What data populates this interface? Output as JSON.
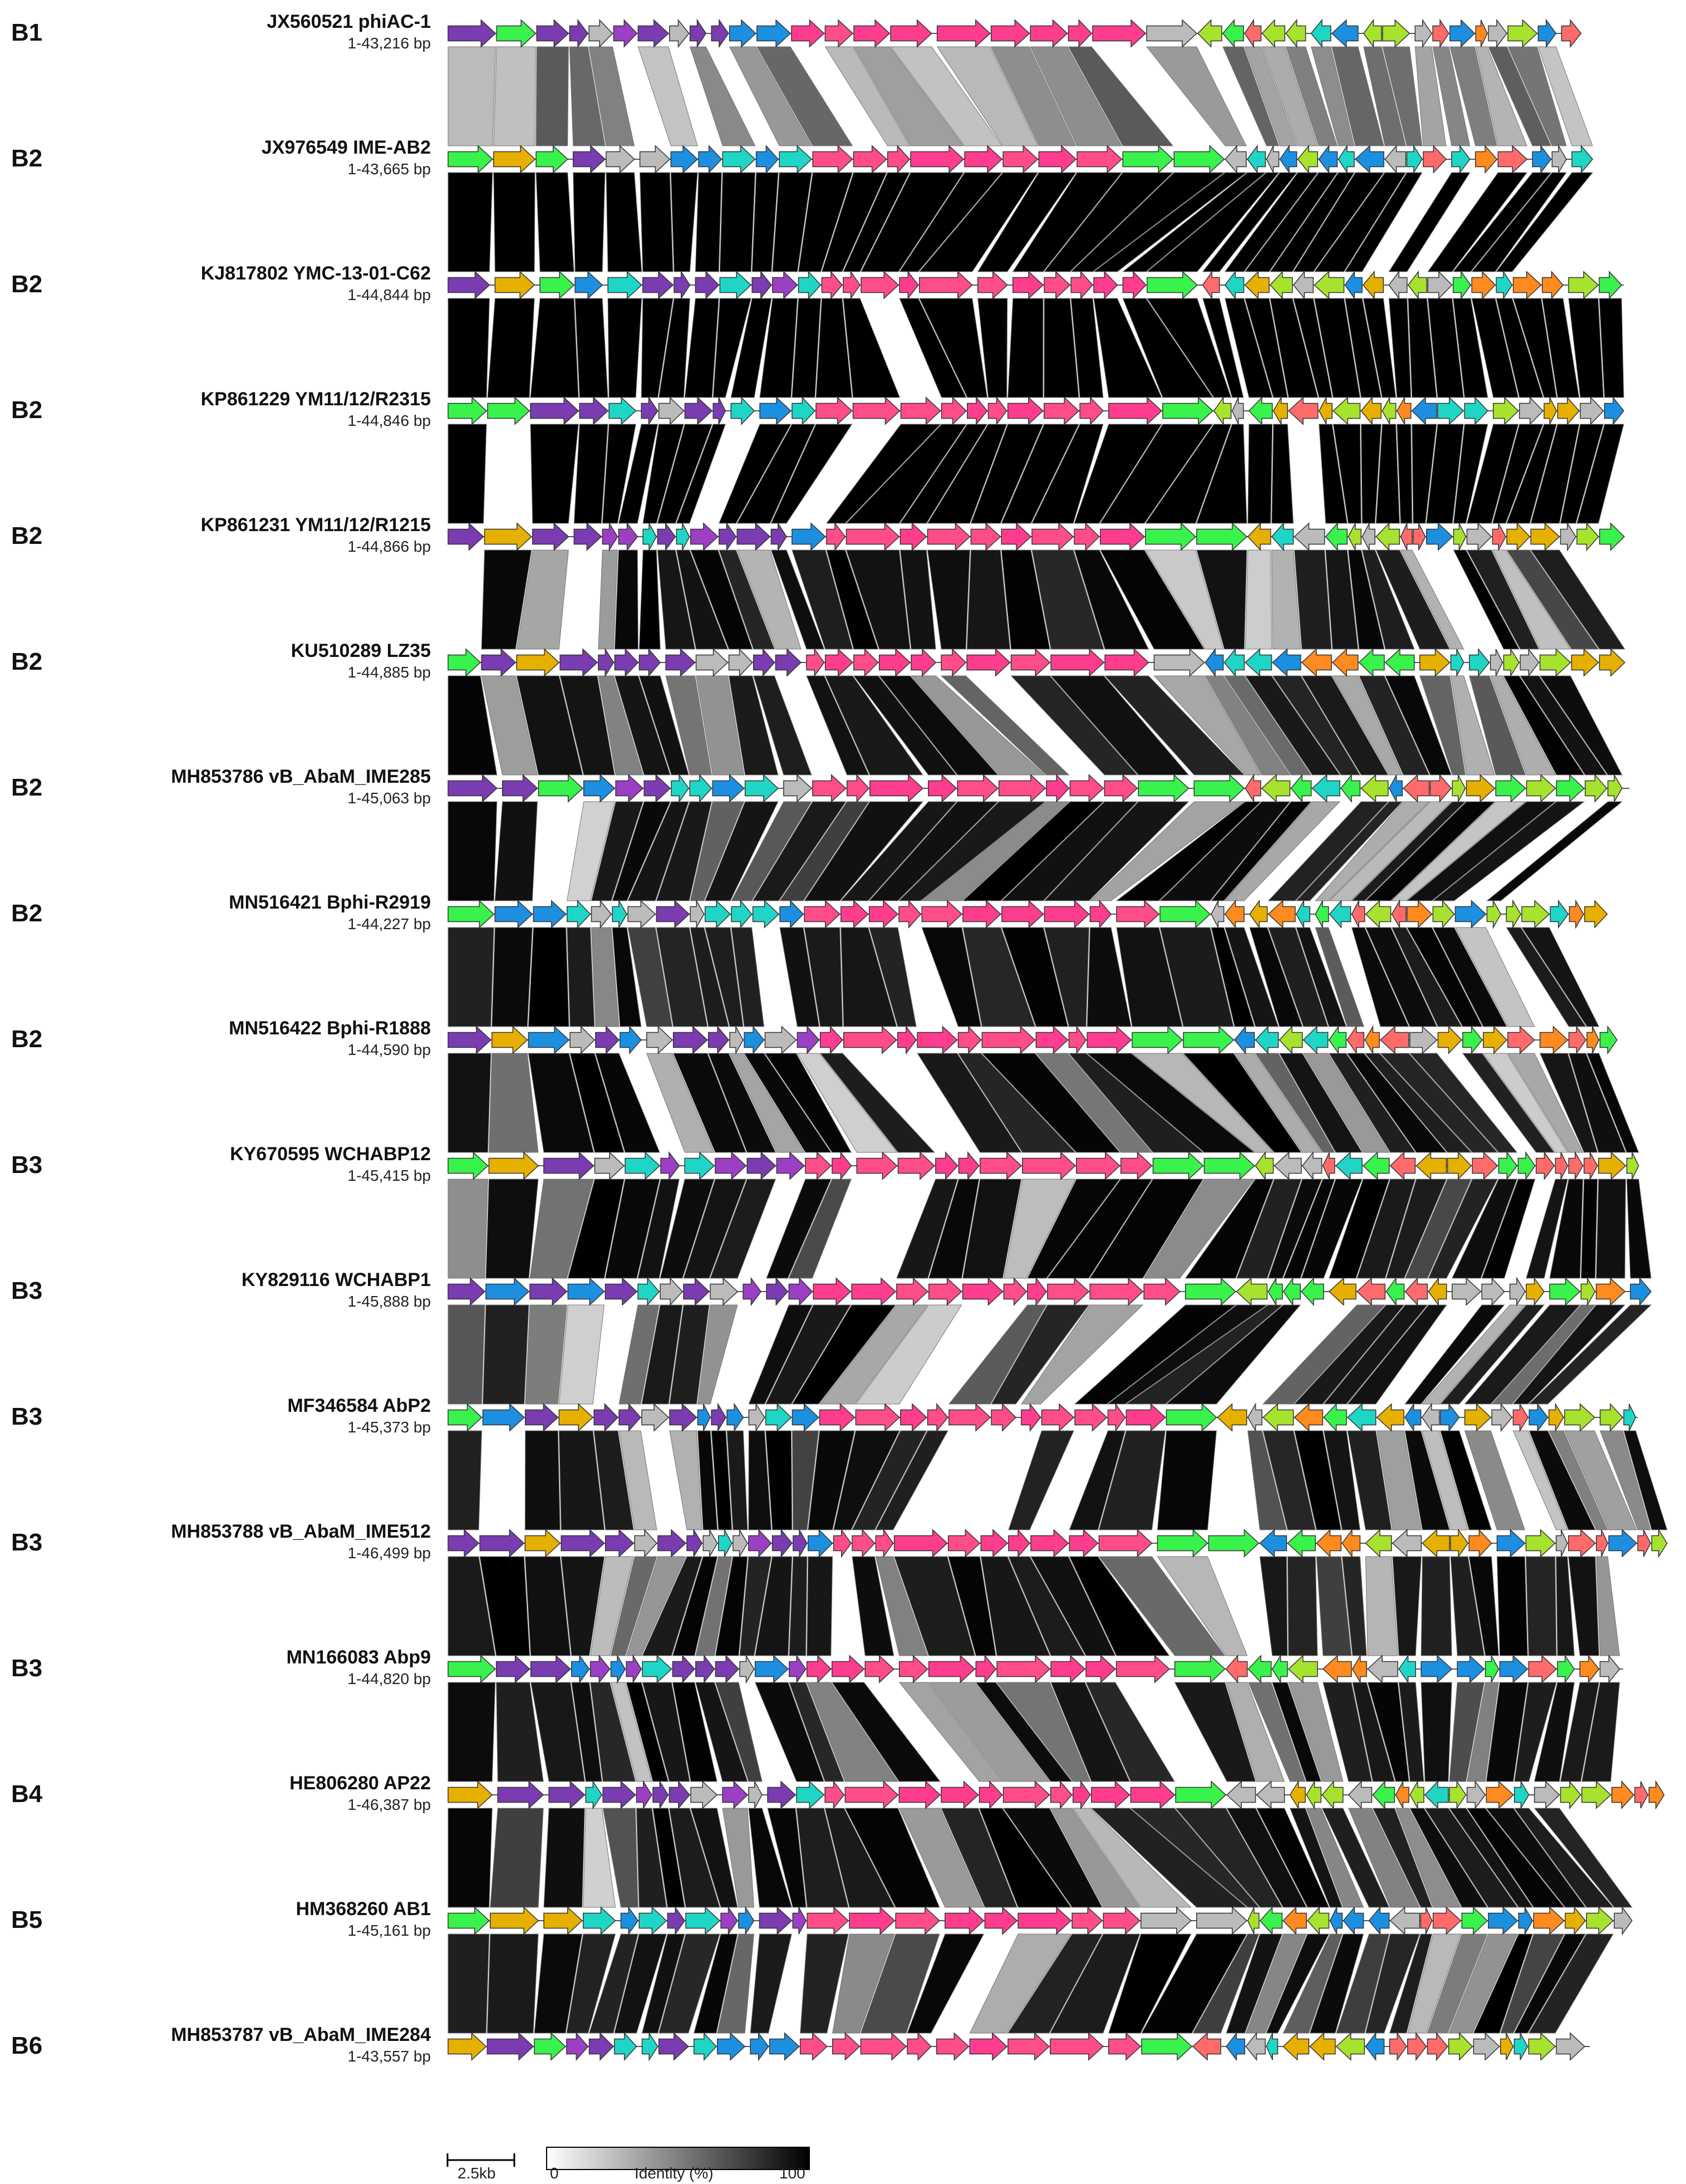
{
  "figure": {
    "description_type": "Comparative genome alignment of Acinetobacter phages (Easyfig-style)",
    "gene_colors": {
      "purple": "#7a3cb0",
      "magenta": "#ff3d8f",
      "pink": "#ff4d8a",
      "yellow": "#e6b000",
      "green": "#39f24c",
      "cyan": "#1fd6c6",
      "blue": "#1d8fe0",
      "lime": "#a6e22e",
      "orange": "#ff8a1f",
      "grey": "#bbbbbb",
      "salmon": "#ff6b6b",
      "violet": "#9b3fc4"
    }
  },
  "genomes": [
    {
      "group": "B1",
      "name": "JX560521 phiAC-1",
      "range": "1-43,216 bp",
      "length": 43216
    },
    {
      "group": "B2",
      "name": "JX976549 IME-AB2",
      "range": "1-43,665 bp",
      "length": 43665
    },
    {
      "group": "B2",
      "name": "KJ817802 YMC-13-01-C62",
      "range": "1-44,844 bp",
      "length": 44844
    },
    {
      "group": "B2",
      "name": "KP861229 YM11/12/R2315",
      "range": "1-44,846 bp",
      "length": 44846
    },
    {
      "group": "B2",
      "name": "KP861231 YM11/12/R1215",
      "range": "1-44,866 bp",
      "length": 44866
    },
    {
      "group": "B2",
      "name": "KU510289 LZ35",
      "range": "1-44,885 bp",
      "length": 44885
    },
    {
      "group": "B2",
      "name": "MH853786 vB_AbaM_IME285",
      "range": "1-45,063 bp",
      "length": 45063
    },
    {
      "group": "B2",
      "name": "MN516421 Bphi-R2919",
      "range": "1-44,227 bp",
      "length": 44227
    },
    {
      "group": "B2",
      "name": "MN516422 Bphi-R1888",
      "range": "1-44,590 bp",
      "length": 44590
    },
    {
      "group": "B3",
      "name": "KY670595 WCHABP12",
      "range": "1-45,415 bp",
      "length": 45415
    },
    {
      "group": "B3",
      "name": "KY829116 WCHABP1",
      "range": "1-45,888 bp",
      "length": 45888
    },
    {
      "group": "B3",
      "name": "MF346584 AbP2",
      "range": "1-45,373 bp",
      "length": 45373
    },
    {
      "group": "B3",
      "name": "MH853788 vB_AbaM_IME512",
      "range": "1-46,499 bp",
      "length": 46499
    },
    {
      "group": "B3",
      "name": "MN166083 Abp9",
      "range": "1-44,820 bp",
      "length": 44820
    },
    {
      "group": "B4",
      "name": "HE806280 AP22",
      "range": "1-46,387 bp",
      "length": 46387
    },
    {
      "group": "B5",
      "name": "HM368260 AB1",
      "range": "1-45,161 bp",
      "length": 45161
    },
    {
      "group": "B6",
      "name": "MH853787 vB_AbaM_IME284",
      "range": "1-43,557 bp",
      "length": 43557
    }
  ],
  "scale_bar": {
    "label": "2.5kb",
    "kb": 2.5
  },
  "identity_legend": {
    "label": "Identity (%)",
    "min_label": "0",
    "max_label": "100",
    "min": 0,
    "max": 100
  }
}
